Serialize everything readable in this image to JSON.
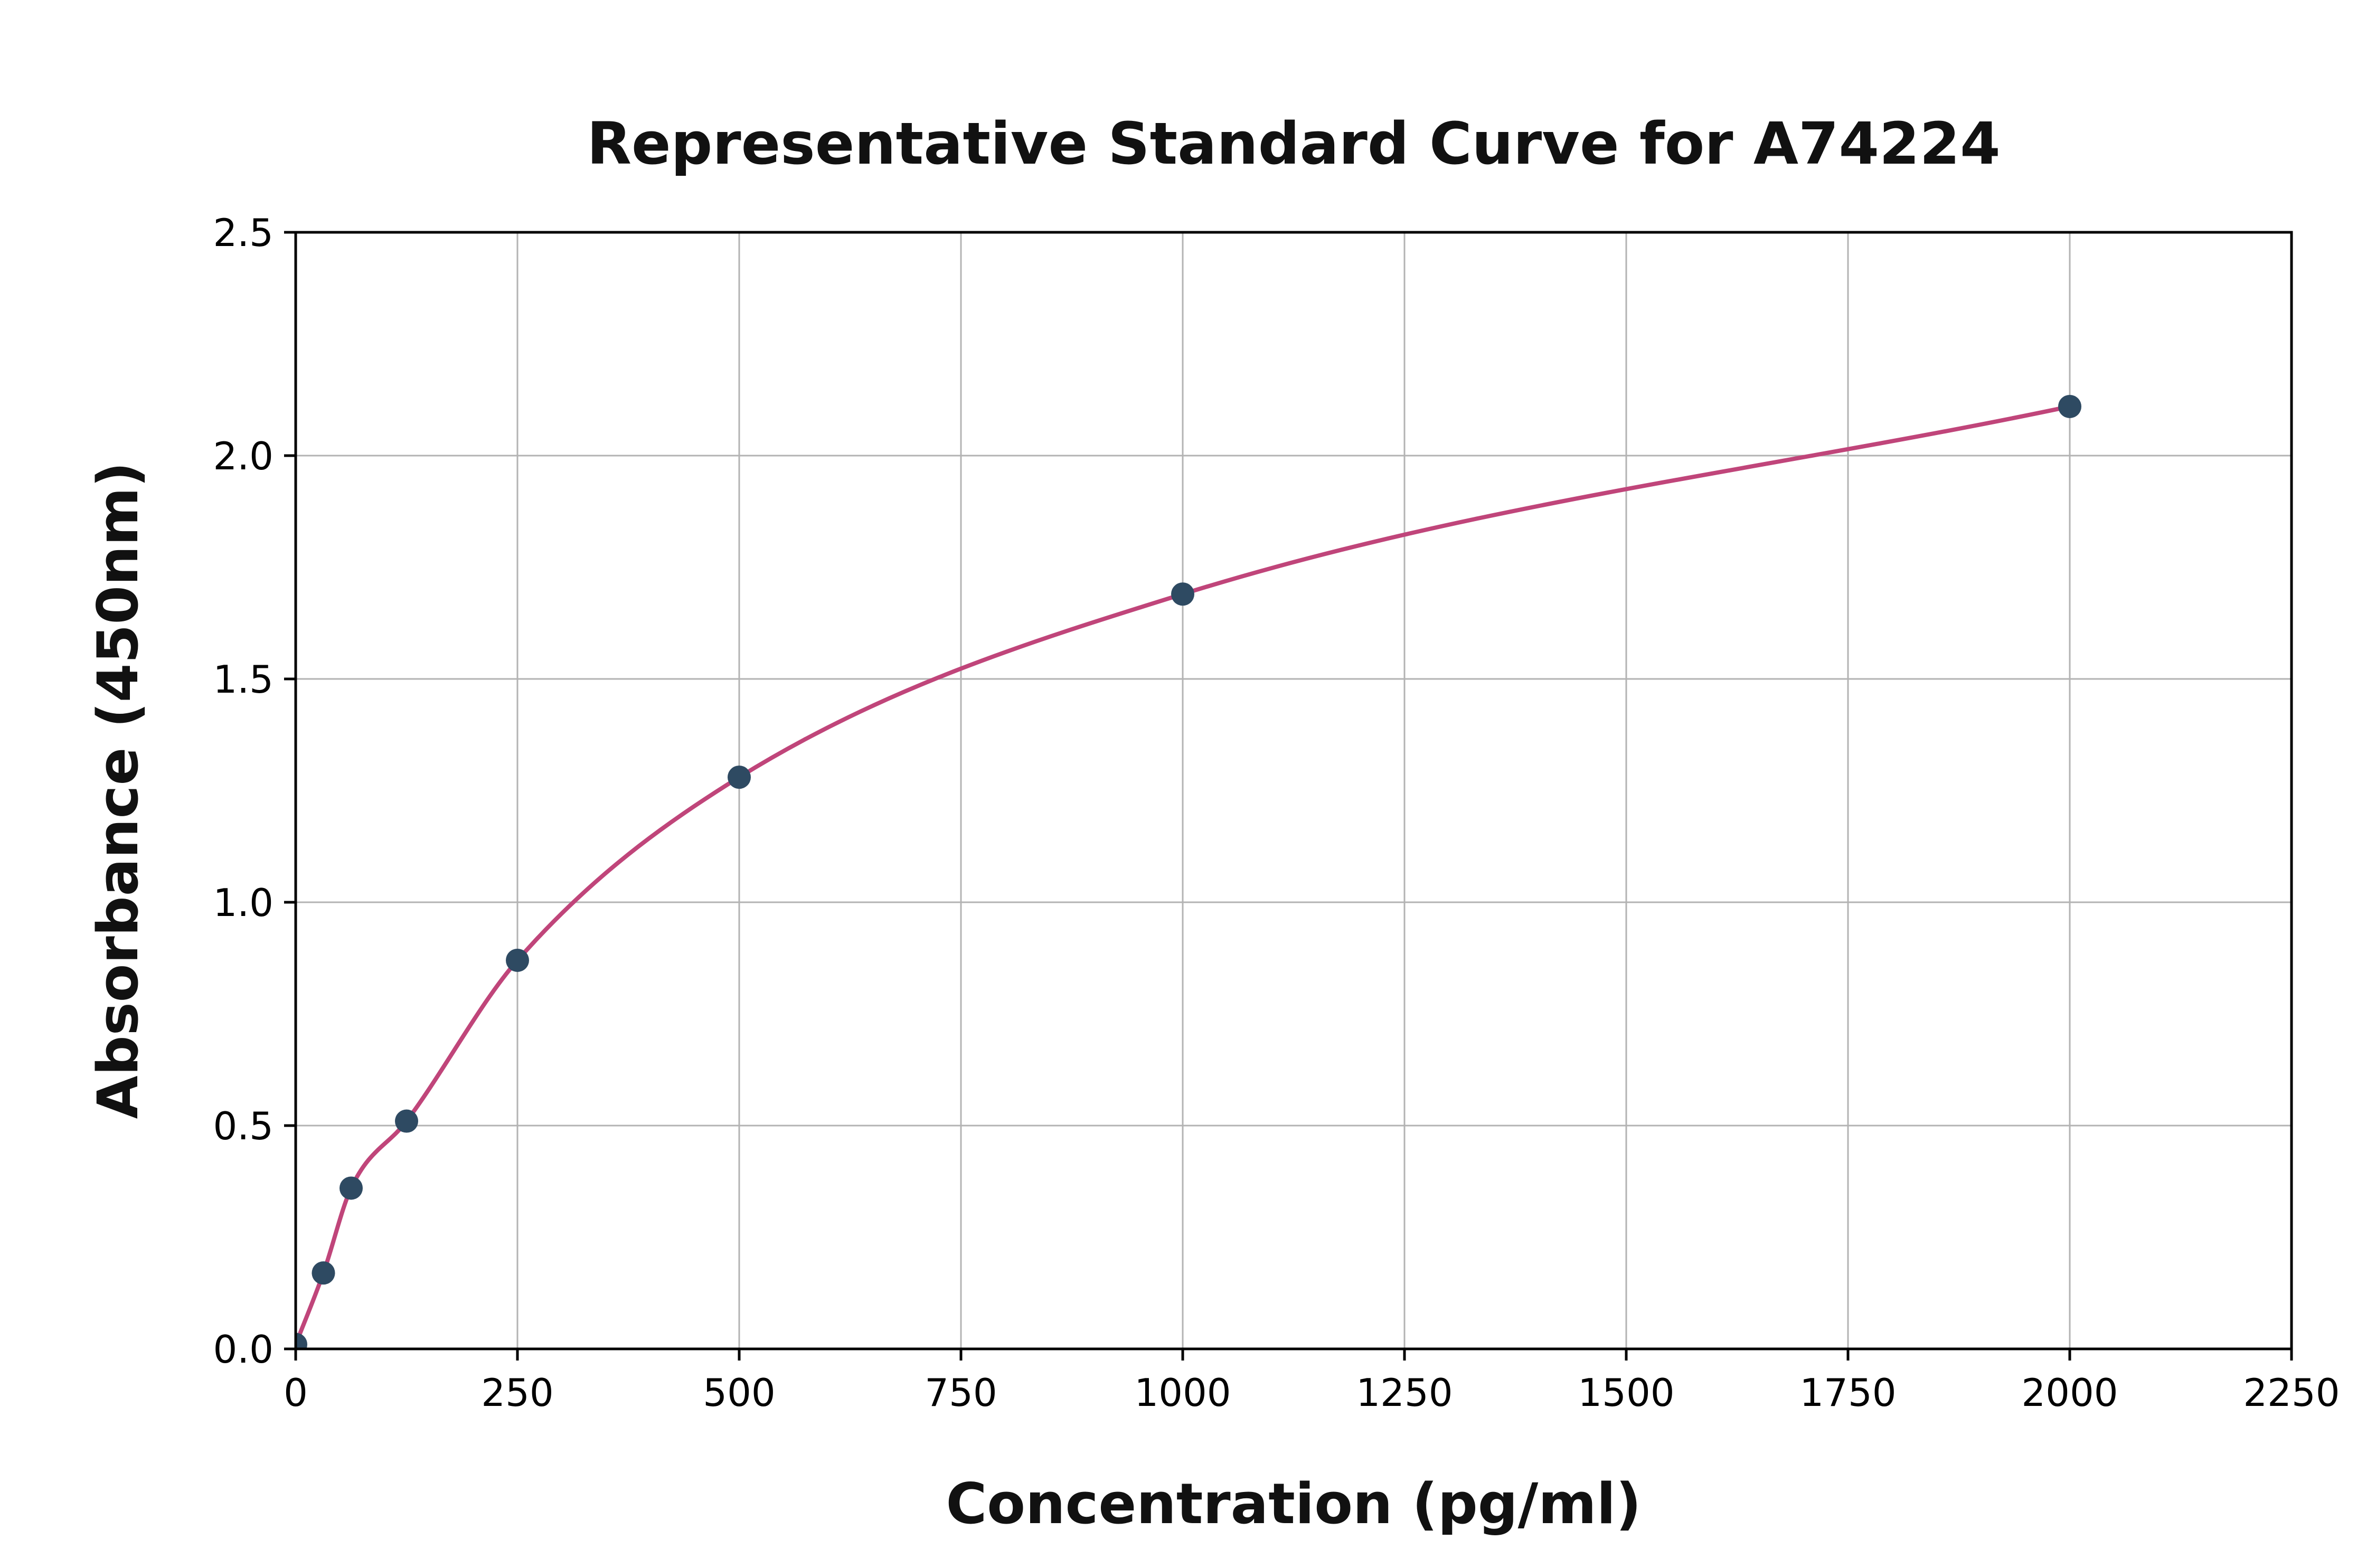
{
  "chart_data": {
    "type": "scatter",
    "title": "Representative Standard Curve for A74224",
    "xlabel": "Concentration (pg/ml)",
    "ylabel": "Absorbance (450nm)",
    "x": [
      0,
      31.25,
      62.5,
      125,
      250,
      500,
      1000,
      2000
    ],
    "y": [
      0.01,
      0.17,
      0.36,
      0.51,
      0.87,
      1.28,
      1.69,
      2.11
    ],
    "xlim": [
      0,
      2250
    ],
    "ylim": [
      0,
      2.5
    ],
    "x_ticks": [
      0,
      250,
      500,
      750,
      1000,
      1250,
      1500,
      1750,
      2000,
      2250
    ],
    "y_ticks": [
      0,
      0.5,
      1,
      1.5,
      2,
      2.5
    ],
    "grid": true,
    "legend": "none",
    "series": [
      {
        "name": "standard-points",
        "type": "scatter"
      },
      {
        "name": "fit-curve",
        "type": "line"
      }
    ],
    "point_color": "#2e4a62",
    "line_color": "#c0457a",
    "grid_color": "#b3b3b3",
    "axis_color": "#000000",
    "background": "#ffffff"
  }
}
